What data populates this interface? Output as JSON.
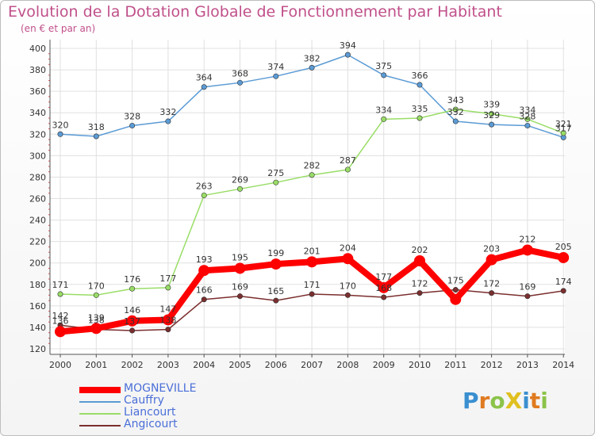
{
  "chart_data": {
    "type": "line",
    "title": "Evolution de la Dotation Globale de Fonctionnement par Habitant",
    "subtitle": "(en € et par an)",
    "xlabel": "",
    "ylabel": "",
    "ylim": [
      120,
      400
    ],
    "yticks": [
      120,
      140,
      160,
      180,
      200,
      220,
      240,
      260,
      280,
      300,
      320,
      340,
      360,
      380,
      400
    ],
    "x": [
      "2000",
      "2001",
      "2002",
      "2003",
      "2004",
      "2005",
      "2006",
      "2007",
      "2008",
      "2009",
      "2010",
      "2011",
      "2012",
      "2013",
      "2014"
    ],
    "grid": true,
    "legend_position": "bottom-left",
    "series": [
      {
        "name": "MOGNEVILLE",
        "color": "#ff0000",
        "values": [
          136,
          139,
          146,
          147,
          193,
          195,
          199,
          201,
          204,
          177,
          202,
          166,
          203,
          212,
          205
        ],
        "labels": [
          "136",
          "139",
          "146",
          "147",
          "193",
          "195",
          "199",
          "201",
          "204",
          "177",
          "202",
          "",
          "203",
          "212",
          "205"
        ]
      },
      {
        "name": "Cauffry",
        "color": "#5b9bd5",
        "values": [
          320,
          318,
          328,
          332,
          364,
          368,
          374,
          382,
          394,
          375,
          366,
          332,
          329,
          328,
          317
        ],
        "labels": [
          "320",
          "318",
          "328",
          "332",
          "364",
          "368",
          "374",
          "382",
          "394",
          "375",
          "366",
          "332",
          "329",
          "328",
          "317"
        ]
      },
      {
        "name": "Liancourt",
        "color": "#99dd66",
        "values": [
          171,
          170,
          176,
          177,
          263,
          269,
          275,
          282,
          287,
          334,
          335,
          343,
          339,
          334,
          321
        ],
        "labels": [
          "171",
          "170",
          "176",
          "177",
          "263",
          "269",
          "275",
          "282",
          "287",
          "334",
          "335",
          "343",
          "339",
          "334",
          "321"
        ]
      },
      {
        "name": "Angicourt",
        "color": "#7b2e2e",
        "values": [
          142,
          138,
          137,
          138,
          166,
          169,
          165,
          171,
          170,
          168,
          172,
          175,
          172,
          169,
          174
        ],
        "labels": [
          "142",
          "138",
          "137",
          "138",
          "166",
          "169",
          "165",
          "171",
          "170",
          "168",
          "172",
          "175",
          "172",
          "169",
          "174"
        ]
      }
    ]
  },
  "logo_text": "ProXiti",
  "colors": {
    "title": "#c0508a",
    "legend_text": "#4a6fd8",
    "axis": "#555555",
    "grid": "#e0e0e0"
  }
}
